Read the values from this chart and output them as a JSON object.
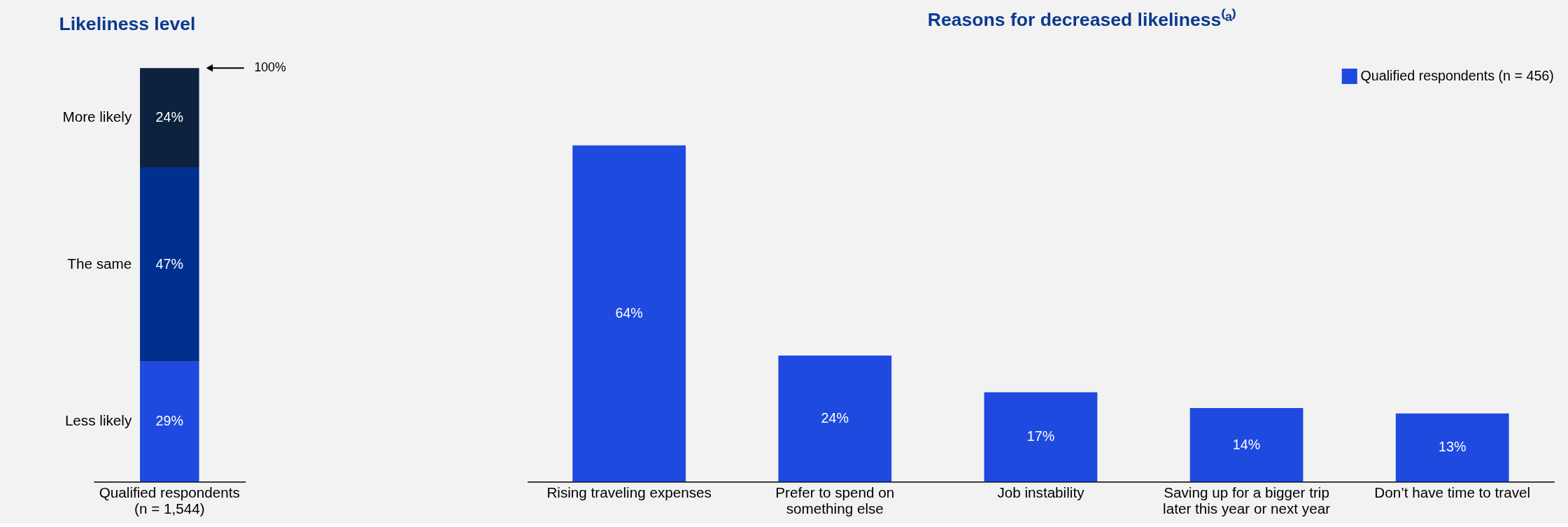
{
  "chart_data": [
    {
      "type": "bar",
      "title": "Likeliness level",
      "stacked": true,
      "categories": [
        "Qualified respondents\n(n = 1,544)"
      ],
      "annotations": [
        "100%"
      ],
      "series": [
        {
          "name": "Less likely",
          "color": "#1f4ae0",
          "values": [
            29
          ],
          "value_labels": [
            "29%"
          ]
        },
        {
          "name": "The same",
          "color": "#00308f",
          "values": [
            47
          ],
          "value_labels": [
            "47%"
          ]
        },
        {
          "name": "More likely",
          "color": "#0c223f",
          "values": [
            24
          ],
          "value_labels": [
            "24%"
          ]
        }
      ]
    },
    {
      "type": "bar",
      "title": "Reasons for decreased likeliness⁽ᵃ⁾",
      "legend": "top right",
      "categories": [
        "Rising traveling expenses",
        "Prefer to spend on\nsomething else",
        "Job instability",
        "Saving up for a bigger trip\nlater this year or next year",
        "Don’t have time to travel"
      ],
      "series": [
        {
          "name": "Qualified respondents (n = 456)",
          "color": "#1f4ae0",
          "values": [
            64,
            24,
            17,
            14,
            13
          ],
          "value_labels": [
            "64%",
            "24%",
            "17%",
            "14%",
            "13%"
          ]
        }
      ]
    }
  ]
}
